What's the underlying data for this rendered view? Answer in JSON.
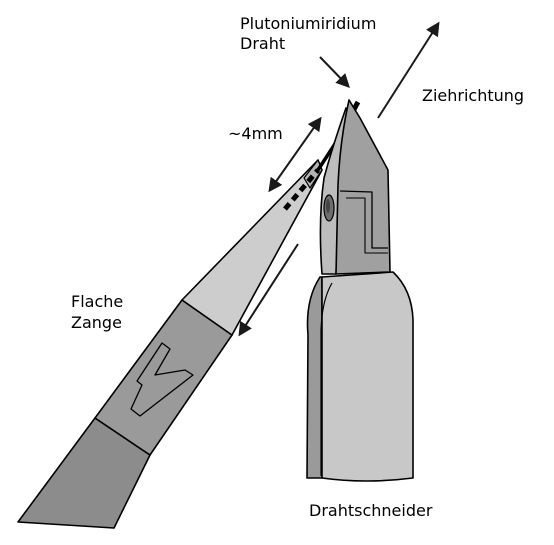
{
  "labels": {
    "wire_line1": "Plutoniumiridium",
    "wire_line2": "Draht",
    "pull_direction": "Ziehrichtung",
    "distance": "~4mm",
    "pliers_line1": "Flache",
    "pliers_line2": "Zange",
    "cutter": "Drahtschneider"
  },
  "colors": {
    "outline": "#000000",
    "handle_dark": "#8c8c8c",
    "jaw_mid": "#a0a0a0",
    "jaw_light": "#cdcdcd",
    "cutter_handle": "#c8c8c8",
    "cutter_handle_shade": "#9a9a9a",
    "arrow": "#1a1a1a"
  }
}
